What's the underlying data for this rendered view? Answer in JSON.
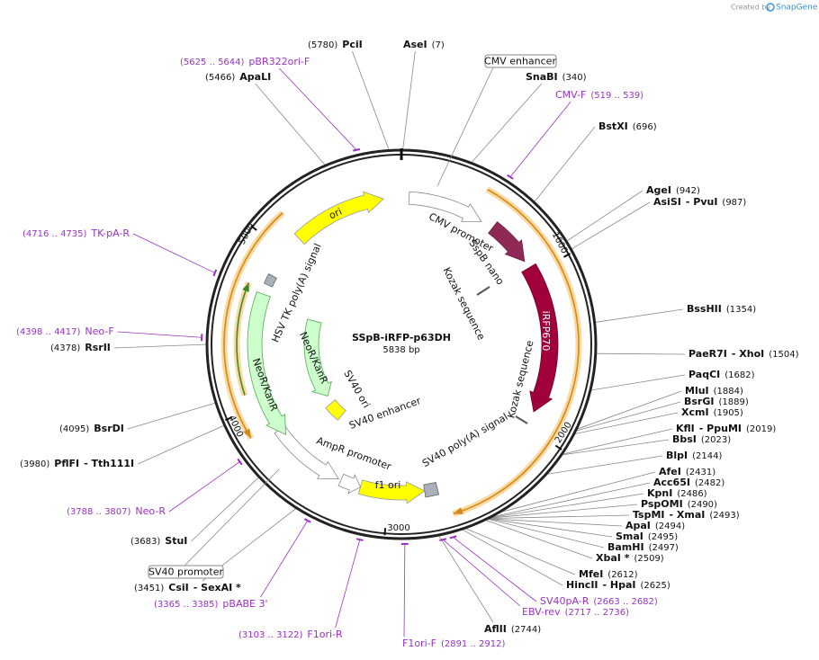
{
  "header": {
    "credit": "Created by",
    "brand": "SnapGene"
  },
  "plasmid": {
    "name": "SSpB-iRFP-p63DH",
    "size": "5838 bp"
  },
  "ticks": [
    "1000",
    "2000",
    "3000",
    "4000",
    "5000"
  ],
  "features": [
    "ori",
    "CMV promoter",
    "SspB nano",
    "Kozak sequence",
    "iRFP670",
    "Kozak sequence",
    "SV40 poly(A) signal",
    "f1 ori",
    "AmpR promoter",
    "NeoR/KanR",
    "HSV TK poly(A) signal",
    "NeoR/KanR",
    "SV40 ori",
    "SV40 enhancer"
  ],
  "boxed_features": [
    "CMV enhancer",
    "SV40 promoter"
  ],
  "sites": [
    {
      "names": [
        "PciI"
      ],
      "position": "(5780)"
    },
    {
      "names": [
        "AseI"
      ],
      "position": "(7)"
    },
    {
      "names": [
        "ApaLI"
      ],
      "position": "(5466)"
    },
    {
      "names": [
        "SnaBI"
      ],
      "position": "(340)"
    },
    {
      "names": [
        "BstXI"
      ],
      "position": "(696)"
    },
    {
      "names": [
        "AgeI"
      ],
      "position": "(942)"
    },
    {
      "names": [
        "AsiSI",
        "- PvuI"
      ],
      "position": "(987)"
    },
    {
      "names": [
        "BssHII"
      ],
      "position": "(1354)"
    },
    {
      "names": [
        "PaeR7I",
        "- XhoI"
      ],
      "position": "(1504)"
    },
    {
      "names": [
        "PaqCI"
      ],
      "position": "(1682)"
    },
    {
      "names": [
        "MluI"
      ],
      "position": "(1884)"
    },
    {
      "names": [
        "BsrGI"
      ],
      "position": "(1889)"
    },
    {
      "names": [
        "XcmI"
      ],
      "position": "(1905)"
    },
    {
      "names": [
        "KflI",
        "- PpuMI"
      ],
      "position": "(2019)"
    },
    {
      "names": [
        "BbsI"
      ],
      "position": "(2023)"
    },
    {
      "names": [
        "BlpI"
      ],
      "position": "(2144)"
    },
    {
      "names": [
        "AfeI"
      ],
      "position": "(2431)"
    },
    {
      "names": [
        "Acc65I"
      ],
      "position": "(2482)"
    },
    {
      "names": [
        "KpnI"
      ],
      "position": "(2486)"
    },
    {
      "names": [
        "PspOMI"
      ],
      "position": "(2490)"
    },
    {
      "names": [
        "TspMI",
        "- XmaI"
      ],
      "position": "(2493)"
    },
    {
      "names": [
        "ApaI"
      ],
      "position": "(2494)"
    },
    {
      "names": [
        "SmaI"
      ],
      "position": "(2495)"
    },
    {
      "names": [
        "BamHI"
      ],
      "position": "(2497)"
    },
    {
      "names": [
        "XbaI *"
      ],
      "position": "(2509)"
    },
    {
      "names": [
        "MfeI"
      ],
      "position": "(2612)"
    },
    {
      "names": [
        "HincII",
        "- HpaI"
      ],
      "position": "(2625)"
    },
    {
      "names": [
        "AflII"
      ],
      "position": "(2744)"
    },
    {
      "names": [
        "RsrII"
      ],
      "position": "(4378)"
    },
    {
      "names": [
        "BsrDI"
      ],
      "position": "(4095)"
    },
    {
      "names": [
        "PflFI",
        "- Tth111I"
      ],
      "position": "(3980)"
    },
    {
      "names": [
        "StuI"
      ],
      "position": "(3683)"
    },
    {
      "names": [
        "CsiI",
        "- SexAI *"
      ],
      "position": "(3451)"
    }
  ],
  "primers": [
    {
      "name": "pBR322ori-F",
      "range": "(5625 .. 5644)"
    },
    {
      "name": "CMV-F",
      "range": "(519 .. 539)"
    },
    {
      "name": "TK-pA-R",
      "range": "(4716 .. 4735)"
    },
    {
      "name": "Neo-F",
      "range": "(4398 .. 4417)"
    },
    {
      "name": "Neo-R",
      "range": "(3788 .. 3807)"
    },
    {
      "name": "pBABE 3'",
      "range": "(3365 .. 3385)"
    },
    {
      "name": "F1ori-R",
      "range": "(3103 .. 3122)"
    },
    {
      "name": "F1ori-F",
      "range": "(2891 .. 2912)"
    },
    {
      "name": "EBV-rev",
      "range": "(2717 .. 2736)"
    },
    {
      "name": "SV40pA-R",
      "range": "(2663 .. 2682)"
    }
  ]
}
